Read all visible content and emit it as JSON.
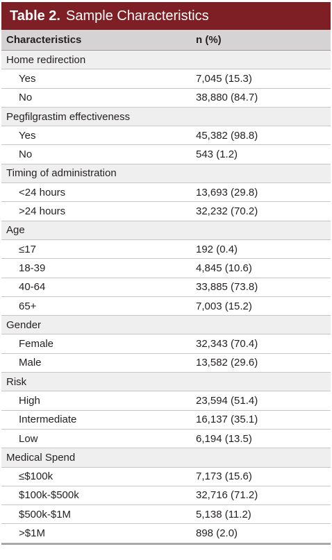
{
  "table": {
    "title_label": "Table 2.",
    "title_text": "Sample Characteristics",
    "headers": [
      "Characteristics",
      "n (%)"
    ],
    "rows": [
      {
        "type": "cat",
        "label": "Home redirection",
        "value": ""
      },
      {
        "type": "sub",
        "label": "Yes",
        "value": "7,045 (15.3)"
      },
      {
        "type": "sub",
        "label": "No",
        "value": "38,880 (84.7)"
      },
      {
        "type": "cat",
        "label": "Pegfilgrastim effectiveness",
        "value": ""
      },
      {
        "type": "sub",
        "label": "Yes",
        "value": "45,382 (98.8)"
      },
      {
        "type": "sub",
        "label": "No",
        "value": "543 (1.2)"
      },
      {
        "type": "cat",
        "label": "Timing of administration",
        "value": ""
      },
      {
        "type": "sub",
        "label": "<24 hours",
        "value": "13,693 (29.8)"
      },
      {
        "type": "sub",
        "label": ">24 hours",
        "value": "32,232 (70.2)"
      },
      {
        "type": "cat",
        "label": "Age",
        "value": ""
      },
      {
        "type": "sub",
        "label": "≤17",
        "value": "192 (0.4)"
      },
      {
        "type": "sub",
        "label": "18-39",
        "value": "4,845 (10.6)"
      },
      {
        "type": "sub",
        "label": "40-64",
        "value": "33,885 (73.8)"
      },
      {
        "type": "sub",
        "label": "65+",
        "value": "7,003 (15.2)"
      },
      {
        "type": "cat",
        "label": "Gender",
        "value": ""
      },
      {
        "type": "sub",
        "label": "Female",
        "value": "32,343 (70.4)"
      },
      {
        "type": "sub",
        "label": "Male",
        "value": "13,582 (29.6)"
      },
      {
        "type": "cat",
        "label": "Risk",
        "value": ""
      },
      {
        "type": "sub",
        "label": "High",
        "value": "23,594 (51.4)"
      },
      {
        "type": "sub",
        "label": "Intermediate",
        "value": "16,137 (35.1)"
      },
      {
        "type": "sub",
        "label": "Low",
        "value": "6,194 (13.5)"
      },
      {
        "type": "cat",
        "label": "Medical Spend",
        "value": ""
      },
      {
        "type": "sub",
        "label": "≤$100k",
        "value": "7,173 (15.6)"
      },
      {
        "type": "sub",
        "label": "$100k-$500k",
        "value": "32,716 (71.2)"
      },
      {
        "type": "sub",
        "label": "$500k-$1M",
        "value": "5,138 (11.2)"
      },
      {
        "type": "sub",
        "label": ">$1M",
        "value": "898 (2.0)"
      }
    ]
  },
  "colors": {
    "title_bar": "#7d1f24",
    "header_bg": "#d5d3d3",
    "category_bg": "#f0efef"
  }
}
